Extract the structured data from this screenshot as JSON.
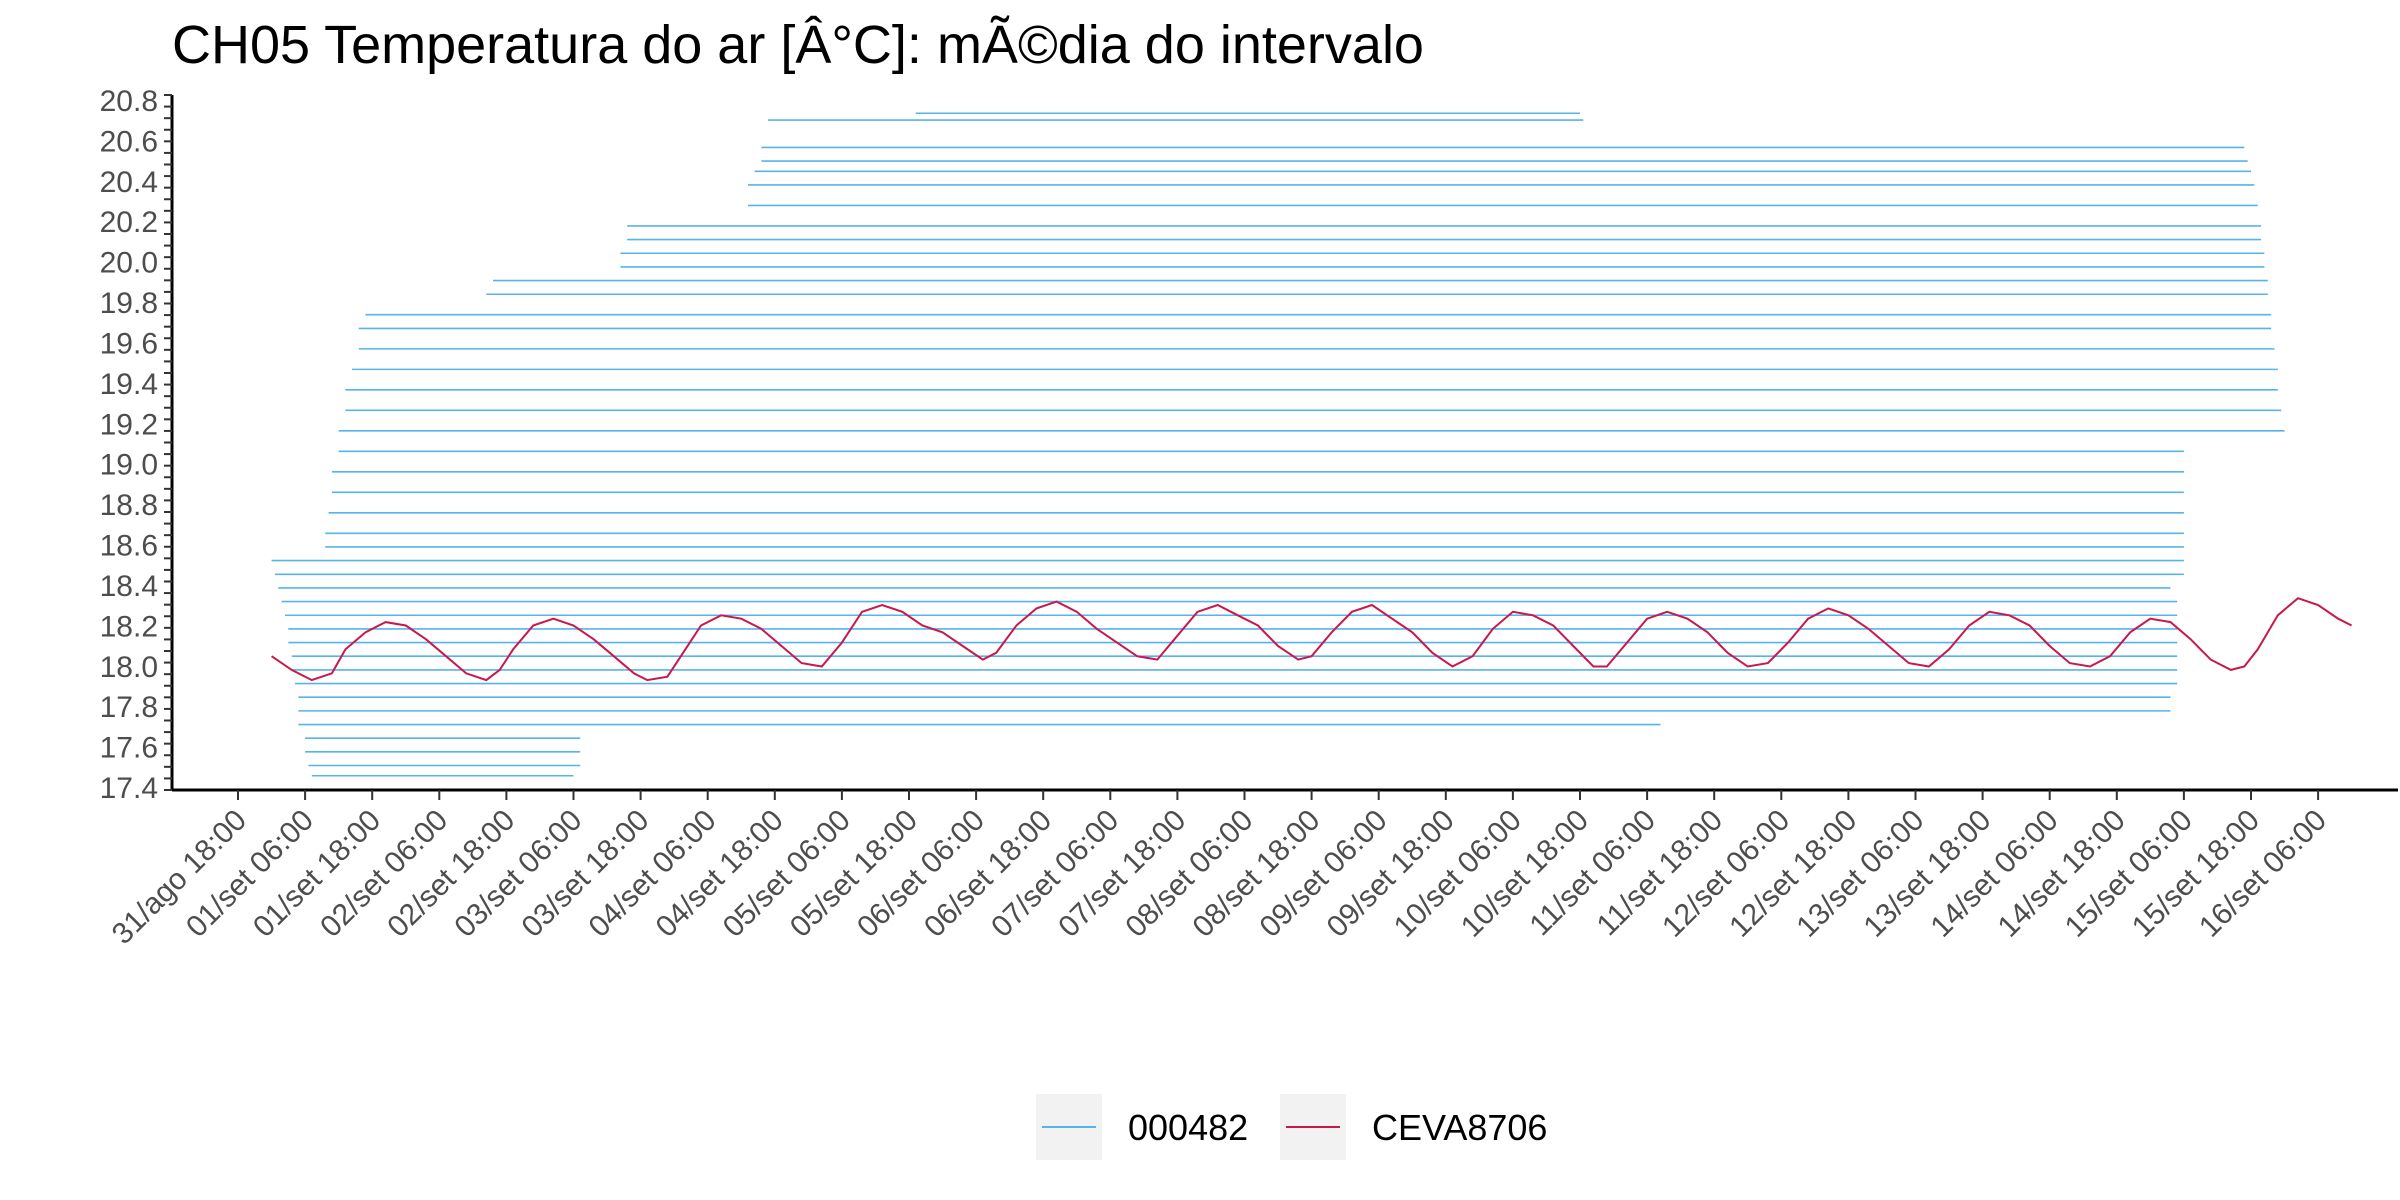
{
  "chart_data": {
    "type": "line",
    "title": "CH05 Temperatura do ar [Â°C]: mÃ©dia do intervalo",
    "xlabel": "",
    "ylabel": "",
    "x_ticks": [
      "31/ago 18:00",
      "01/set 06:00",
      "01/set 18:00",
      "02/set 06:00",
      "02/set 18:00",
      "03/set 06:00",
      "03/set 18:00",
      "04/set 06:00",
      "04/set 18:00",
      "05/set 06:00",
      "05/set 18:00",
      "06/set 06:00",
      "06/set 18:00",
      "07/set 06:00",
      "07/set 18:00",
      "08/set 06:00",
      "08/set 18:00",
      "09/set 06:00",
      "09/set 18:00",
      "10/set 06:00",
      "10/set 18:00",
      "11/set 06:00",
      "11/set 18:00",
      "12/set 06:00",
      "12/set 18:00",
      "13/set 06:00",
      "13/set 18:00",
      "14/set 06:00",
      "14/set 18:00",
      "15/set 06:00",
      "15/set 18:00",
      "16/set 06:00"
    ],
    "y_ticks": [
      "17.4",
      "17.6",
      "17.8",
      "18.0",
      "18.2",
      "18.4",
      "18.6",
      "18.8",
      "19.0",
      "19.2",
      "19.4",
      "19.6",
      "19.8",
      "20.0",
      "20.2",
      "20.4",
      "20.6",
      "20.8"
    ],
    "legend_position": "bottom",
    "grid": false,
    "series": [
      {
        "name": "000482",
        "color": "#56B4E9",
        "description_type": "horizontal-segments",
        "segments": [
          {
            "y": 0.985,
            "x0": 10.1,
            "x1": 20.0
          },
          {
            "y": 0.975,
            "x0": 7.9,
            "x1": 20.05
          },
          {
            "y": 0.935,
            "x0": 7.8,
            "x1": 29.9
          },
          {
            "y": 0.915,
            "x0": 7.8,
            "x1": 29.95
          },
          {
            "y": 0.9,
            "x0": 7.7,
            "x1": 30.0
          },
          {
            "y": 0.88,
            "x0": 7.6,
            "x1": 30.05
          },
          {
            "y": 0.85,
            "x0": 7.6,
            "x1": 30.1
          },
          {
            "y": 0.82,
            "x0": 5.8,
            "x1": 30.15
          },
          {
            "y": 0.8,
            "x0": 5.8,
            "x1": 30.15
          },
          {
            "y": 0.78,
            "x0": 5.7,
            "x1": 30.2
          },
          {
            "y": 0.76,
            "x0": 5.7,
            "x1": 30.2
          },
          {
            "y": 0.74,
            "x0": 3.8,
            "x1": 30.25
          },
          {
            "y": 0.72,
            "x0": 3.7,
            "x1": 30.25
          },
          {
            "y": 0.69,
            "x0": 1.9,
            "x1": 30.3
          },
          {
            "y": 0.67,
            "x0": 1.8,
            "x1": 30.3
          },
          {
            "y": 0.64,
            "x0": 1.8,
            "x1": 30.35
          },
          {
            "y": 0.61,
            "x0": 1.7,
            "x1": 30.4
          },
          {
            "y": 0.58,
            "x0": 1.6,
            "x1": 30.4
          },
          {
            "y": 0.55,
            "x0": 1.6,
            "x1": 30.45
          },
          {
            "y": 0.52,
            "x0": 1.5,
            "x1": 30.5
          },
          {
            "y": 0.49,
            "x0": 1.5,
            "x1": 29.0
          },
          {
            "y": 0.46,
            "x0": 1.4,
            "x1": 29.0
          },
          {
            "y": 0.43,
            "x0": 1.4,
            "x1": 29.0
          },
          {
            "y": 0.4,
            "x0": 1.35,
            "x1": 29.0
          },
          {
            "y": 0.37,
            "x0": 1.3,
            "x1": 29.0
          },
          {
            "y": 0.35,
            "x0": 1.3,
            "x1": 29.0
          },
          {
            "y": 0.33,
            "x0": 0.5,
            "x1": 29.0
          },
          {
            "y": 0.31,
            "x0": 0.55,
            "x1": 29.0
          },
          {
            "y": 0.29,
            "x0": 0.6,
            "x1": 28.8
          },
          {
            "y": 0.27,
            "x0": 0.65,
            "x1": 28.9
          },
          {
            "y": 0.25,
            "x0": 0.7,
            "x1": 28.9
          },
          {
            "y": 0.23,
            "x0": 0.75,
            "x1": 28.9
          },
          {
            "y": 0.21,
            "x0": 0.75,
            "x1": 28.9
          },
          {
            "y": 0.19,
            "x0": 0.8,
            "x1": 28.9
          },
          {
            "y": 0.17,
            "x0": 0.8,
            "x1": 28.9
          },
          {
            "y": 0.15,
            "x0": 0.85,
            "x1": 28.9
          },
          {
            "y": 0.13,
            "x0": 0.9,
            "x1": 28.8
          },
          {
            "y": 0.11,
            "x0": 0.9,
            "x1": 28.8
          },
          {
            "y": 0.09,
            "x0": 0.9,
            "x1": 21.2
          },
          {
            "y": 0.07,
            "x0": 1.0,
            "x1": 5.1
          },
          {
            "y": 0.05,
            "x0": 1.0,
            "x1": 5.1
          },
          {
            "y": 0.03,
            "x0": 1.05,
            "x1": 5.1
          },
          {
            "y": 0.015,
            "x0": 1.1,
            "x1": 5.0
          }
        ]
      },
      {
        "name": "CEVA8706",
        "color": "#C9184A",
        "description_type": "polyline",
        "points": [
          [
            0.5,
            0.19
          ],
          [
            0.8,
            0.17
          ],
          [
            1.1,
            0.155
          ],
          [
            1.4,
            0.165
          ],
          [
            1.6,
            0.2
          ],
          [
            1.9,
            0.225
          ],
          [
            2.2,
            0.24
          ],
          [
            2.5,
            0.235
          ],
          [
            2.8,
            0.215
          ],
          [
            3.1,
            0.19
          ],
          [
            3.4,
            0.165
          ],
          [
            3.7,
            0.155
          ],
          [
            3.9,
            0.17
          ],
          [
            4.1,
            0.2
          ],
          [
            4.4,
            0.235
          ],
          [
            4.7,
            0.245
          ],
          [
            5.0,
            0.235
          ],
          [
            5.3,
            0.215
          ],
          [
            5.6,
            0.19
          ],
          [
            5.9,
            0.165
          ],
          [
            6.1,
            0.155
          ],
          [
            6.4,
            0.16
          ],
          [
            6.6,
            0.19
          ],
          [
            6.9,
            0.235
          ],
          [
            7.2,
            0.25
          ],
          [
            7.5,
            0.245
          ],
          [
            7.8,
            0.23
          ],
          [
            8.1,
            0.205
          ],
          [
            8.4,
            0.18
          ],
          [
            8.7,
            0.175
          ],
          [
            9.0,
            0.21
          ],
          [
            9.3,
            0.255
          ],
          [
            9.6,
            0.265
          ],
          [
            9.9,
            0.255
          ],
          [
            10.2,
            0.235
          ],
          [
            10.5,
            0.225
          ],
          [
            10.8,
            0.205
          ],
          [
            11.1,
            0.185
          ],
          [
            11.3,
            0.195
          ],
          [
            11.6,
            0.235
          ],
          [
            11.9,
            0.26
          ],
          [
            12.2,
            0.27
          ],
          [
            12.5,
            0.255
          ],
          [
            12.8,
            0.23
          ],
          [
            13.1,
            0.21
          ],
          [
            13.4,
            0.19
          ],
          [
            13.7,
            0.185
          ],
          [
            14.0,
            0.22
          ],
          [
            14.3,
            0.255
          ],
          [
            14.6,
            0.265
          ],
          [
            14.9,
            0.25
          ],
          [
            15.2,
            0.235
          ],
          [
            15.5,
            0.205
          ],
          [
            15.8,
            0.185
          ],
          [
            16.0,
            0.19
          ],
          [
            16.3,
            0.225
          ],
          [
            16.6,
            0.255
          ],
          [
            16.9,
            0.265
          ],
          [
            17.2,
            0.245
          ],
          [
            17.5,
            0.225
          ],
          [
            17.8,
            0.195
          ],
          [
            18.1,
            0.175
          ],
          [
            18.4,
            0.19
          ],
          [
            18.7,
            0.23
          ],
          [
            19.0,
            0.255
          ],
          [
            19.3,
            0.25
          ],
          [
            19.6,
            0.235
          ],
          [
            19.9,
            0.205
          ],
          [
            20.2,
            0.175
          ],
          [
            20.4,
            0.175
          ],
          [
            20.7,
            0.21
          ],
          [
            21.0,
            0.245
          ],
          [
            21.3,
            0.255
          ],
          [
            21.6,
            0.245
          ],
          [
            21.9,
            0.225
          ],
          [
            22.2,
            0.195
          ],
          [
            22.5,
            0.175
          ],
          [
            22.8,
            0.18
          ],
          [
            23.1,
            0.21
          ],
          [
            23.4,
            0.245
          ],
          [
            23.7,
            0.26
          ],
          [
            24.0,
            0.25
          ],
          [
            24.3,
            0.23
          ],
          [
            24.6,
            0.205
          ],
          [
            24.9,
            0.18
          ],
          [
            25.2,
            0.175
          ],
          [
            25.5,
            0.2
          ],
          [
            25.8,
            0.235
          ],
          [
            26.1,
            0.255
          ],
          [
            26.4,
            0.25
          ],
          [
            26.7,
            0.235
          ],
          [
            27.0,
            0.205
          ],
          [
            27.3,
            0.18
          ],
          [
            27.6,
            0.175
          ],
          [
            27.9,
            0.19
          ],
          [
            28.2,
            0.225
          ],
          [
            28.5,
            0.245
          ],
          [
            28.8,
            0.24
          ],
          [
            29.1,
            0.215
          ],
          [
            29.4,
            0.185
          ],
          [
            29.7,
            0.17
          ],
          [
            29.9,
            0.175
          ],
          [
            30.1,
            0.2
          ],
          [
            30.4,
            0.25
          ],
          [
            30.7,
            0.275
          ],
          [
            31.0,
            0.265
          ],
          [
            31.3,
            0.245
          ],
          [
            31.5,
            0.235
          ]
        ]
      }
    ]
  },
  "legend": {
    "items": [
      {
        "label": "000482",
        "color": "#56B4E9"
      },
      {
        "label": "CEVA8706",
        "color": "#C9184A"
      }
    ]
  }
}
